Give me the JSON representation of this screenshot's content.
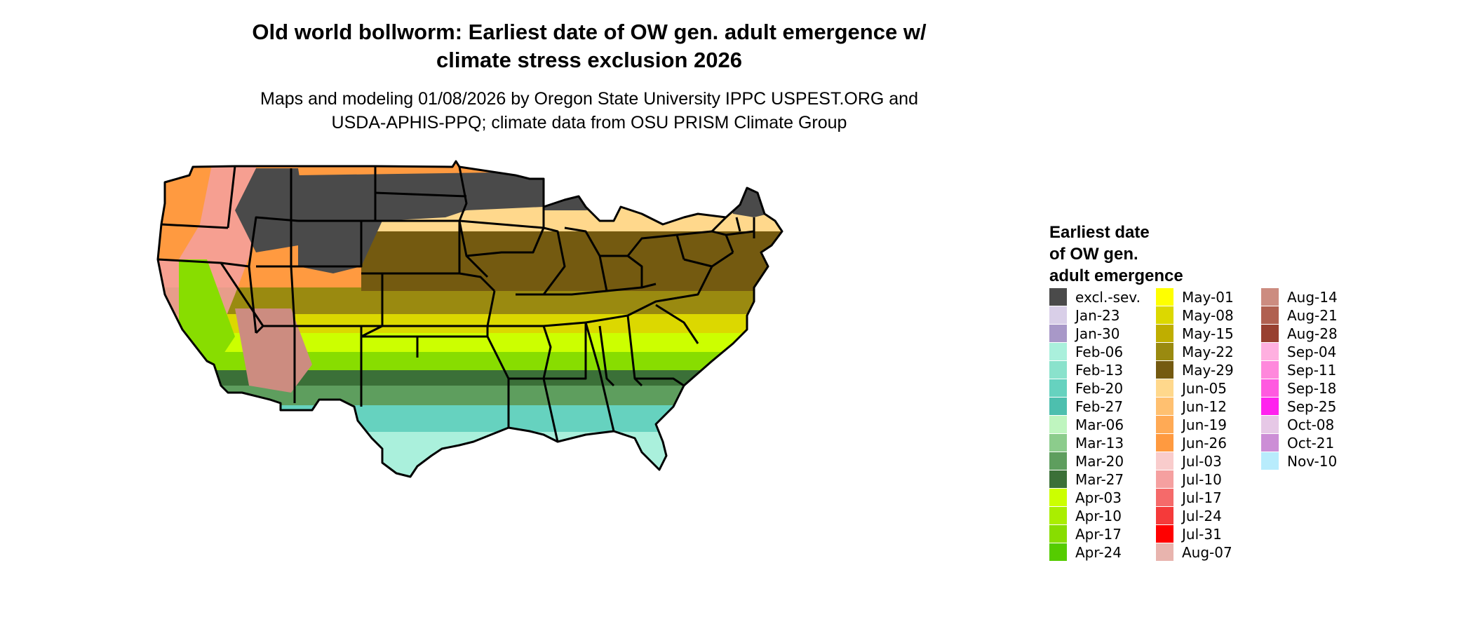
{
  "title": {
    "line1": "Old world bollworm: Earliest date of OW gen. adult emergence w/",
    "line2": "climate stress exclusion 2026"
  },
  "subtitle": {
    "line1": "Maps and modeling 01/08/2026 by Oregon State University IPPC USPEST.ORG and",
    "line2": "USDA-APHIS-PPQ; climate data from OSU PRISM Climate Group"
  },
  "legend": {
    "title_line1": "Earliest date",
    "title_line2": "of OW gen.",
    "title_line3": "adult emergence",
    "columns": [
      [
        {
          "label": "excl.-sev.",
          "color": "#4a4a4a"
        },
        {
          "label": "Jan-23",
          "color": "#d9cfe8"
        },
        {
          "label": "Jan-30",
          "color": "#a898c8"
        },
        {
          "label": "Feb-06",
          "color": "#aaf0dc"
        },
        {
          "label": "Feb-13",
          "color": "#8ae2cc"
        },
        {
          "label": "Feb-20",
          "color": "#66d2bf"
        },
        {
          "label": "Feb-27",
          "color": "#4dbfae"
        },
        {
          "label": "Mar-06",
          "color": "#bff5bf"
        },
        {
          "label": "Mar-13",
          "color": "#8ccc8c"
        },
        {
          "label": "Mar-20",
          "color": "#5e9e5e"
        },
        {
          "label": "Mar-27",
          "color": "#3b7038"
        },
        {
          "label": "Apr-03",
          "color": "#ccff00"
        },
        {
          "label": "Apr-10",
          "color": "#aaee00"
        },
        {
          "label": "Apr-17",
          "color": "#88dd00"
        },
        {
          "label": "Apr-24",
          "color": "#55cc00"
        }
      ],
      [
        {
          "label": "May-01",
          "color": "#ffff00"
        },
        {
          "label": "May-08",
          "color": "#dcd800"
        },
        {
          "label": "May-15",
          "color": "#bfae00"
        },
        {
          "label": "May-22",
          "color": "#9a8a10"
        },
        {
          "label": "May-29",
          "color": "#745a10"
        },
        {
          "label": "Jun-05",
          "color": "#ffd88c"
        },
        {
          "label": "Jun-12",
          "color": "#ffc070"
        },
        {
          "label": "Jun-19",
          "color": "#ffaa55"
        },
        {
          "label": "Jun-26",
          "color": "#ff9a40"
        },
        {
          "label": "Jul-03",
          "color": "#f9cccc"
        },
        {
          "label": "Jul-10",
          "color": "#f5a0a0"
        },
        {
          "label": "Jul-17",
          "color": "#f56a6a"
        },
        {
          "label": "Jul-24",
          "color": "#f53a3a"
        },
        {
          "label": "Jul-31",
          "color": "#ff0000"
        },
        {
          "label": "Aug-07",
          "color": "#e8b4ae"
        }
      ],
      [
        {
          "label": "Aug-14",
          "color": "#cc8c80"
        },
        {
          "label": "Aug-21",
          "color": "#b06050"
        },
        {
          "label": "Aug-28",
          "color": "#984030"
        },
        {
          "label": "Sep-04",
          "color": "#ffb0e0"
        },
        {
          "label": "Sep-11",
          "color": "#ff88dc"
        },
        {
          "label": "Sep-18",
          "color": "#ff5ae0"
        },
        {
          "label": "Sep-25",
          "color": "#ff22ee"
        },
        {
          "label": "Oct-08",
          "color": "#e6c8e6"
        },
        {
          "label": "Oct-21",
          "color": "#cc8ed6"
        },
        {
          "label": "Nov-10",
          "color": "#b8ecfc"
        }
      ]
    ]
  }
}
